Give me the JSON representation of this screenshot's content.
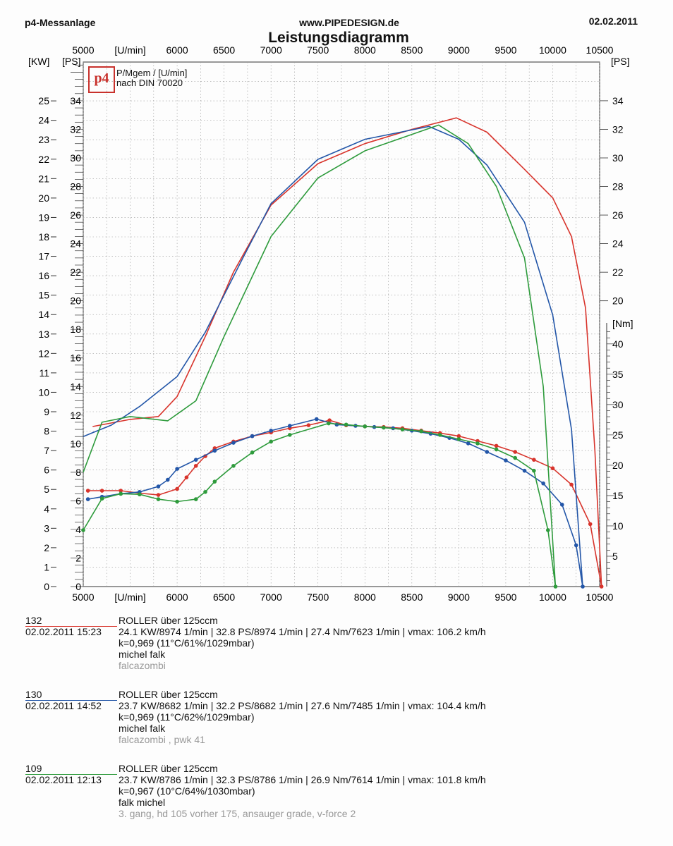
{
  "header": {
    "left": "p4-Messanlage",
    "center": "www.PIPEDESIGN.de",
    "right": "02.02.2011",
    "title": "Leistungsdiagramm"
  },
  "legend": {
    "logo_text": "p4",
    "line1": "P/Mgem / [U/min]",
    "line2": "nach DIN 70020"
  },
  "chart_data": {
    "type": "line",
    "title": "Leistungsdiagramm",
    "xlabel": "[U/min]",
    "ylabel_left_kw": "[KW]",
    "ylabel_left_ps": "[PS]",
    "ylabel_right_ps": "[PS]",
    "ylabel_right_nm": "[Nm]",
    "xlim": [
      5000,
      10500
    ],
    "ylim_kw": [
      0,
      27
    ],
    "ylim_ps": [
      0,
      36.7
    ],
    "ylim_nm": [
      0,
      43
    ],
    "x_ticks": [
      5000,
      5500,
      6000,
      6500,
      7000,
      7500,
      8000,
      8500,
      9000,
      9500,
      10000,
      10500
    ],
    "x_tick_labels": [
      "5000",
      "[U/min]",
      "6000",
      "6500",
      "7000",
      "7500",
      "8000",
      "8500",
      "9000",
      "9500",
      "10000",
      "10500"
    ],
    "kw_ticks": [
      0,
      1,
      2,
      3,
      4,
      5,
      6,
      7,
      8,
      9,
      10,
      11,
      12,
      13,
      14,
      15,
      16,
      17,
      18,
      19,
      20,
      21,
      22,
      23,
      24,
      25
    ],
    "ps_ticks": [
      0,
      2,
      4,
      6,
      8,
      10,
      12,
      14,
      16,
      18,
      20,
      22,
      24,
      26,
      28,
      30,
      32,
      34
    ],
    "ps_ticks_right": [
      20,
      22,
      24,
      26,
      28,
      30,
      32,
      34
    ],
    "nm_ticks": [
      5,
      10,
      15,
      20,
      25,
      30,
      35,
      40
    ],
    "grid": true,
    "series": [
      {
        "name": "132",
        "color": "#d8342c",
        "power_ps": [
          [
            5100,
            11.2
          ],
          [
            5500,
            11.7
          ],
          [
            5800,
            11.9
          ],
          [
            6000,
            13.3
          ],
          [
            6300,
            17.5
          ],
          [
            6600,
            22.0
          ],
          [
            7000,
            26.7
          ],
          [
            7500,
            29.6
          ],
          [
            8000,
            31.0
          ],
          [
            8500,
            32.0
          ],
          [
            8974,
            32.8
          ],
          [
            9300,
            31.8
          ],
          [
            9700,
            29.2
          ],
          [
            10000,
            27.2
          ],
          [
            10200,
            24.5
          ],
          [
            10350,
            19.5
          ],
          [
            10450,
            9.5
          ],
          [
            10520,
            0
          ]
        ],
        "torque_nm": [
          [
            5050,
            15.8
          ],
          [
            5200,
            15.8
          ],
          [
            5400,
            15.8
          ],
          [
            5600,
            15.4
          ],
          [
            5800,
            15.1
          ],
          [
            6000,
            16.1
          ],
          [
            6100,
            18.0
          ],
          [
            6200,
            19.9
          ],
          [
            6300,
            21.5
          ],
          [
            6400,
            22.8
          ],
          [
            6600,
            23.9
          ],
          [
            6800,
            24.8
          ],
          [
            7000,
            25.4
          ],
          [
            7200,
            26.1
          ],
          [
            7400,
            26.6
          ],
          [
            7623,
            27.4
          ],
          [
            7800,
            26.6
          ],
          [
            8000,
            26.4
          ],
          [
            8200,
            26.3
          ],
          [
            8400,
            26.1
          ],
          [
            8600,
            25.7
          ],
          [
            8800,
            25.3
          ],
          [
            9000,
            24.8
          ],
          [
            9200,
            24.0
          ],
          [
            9400,
            23.2
          ],
          [
            9600,
            22.2
          ],
          [
            9800,
            20.9
          ],
          [
            10000,
            19.5
          ],
          [
            10200,
            16.8
          ],
          [
            10400,
            10.3
          ],
          [
            10520,
            0
          ]
        ]
      },
      {
        "name": "130",
        "color": "#2356a8",
        "power_ps": [
          [
            5000,
            10.5
          ],
          [
            5300,
            11.3
          ],
          [
            5600,
            12.6
          ],
          [
            6000,
            14.7
          ],
          [
            6300,
            17.8
          ],
          [
            6700,
            23.0
          ],
          [
            7000,
            26.8
          ],
          [
            7500,
            29.9
          ],
          [
            8000,
            31.3
          ],
          [
            8682,
            32.2
          ],
          [
            9000,
            31.3
          ],
          [
            9300,
            29.5
          ],
          [
            9700,
            25.5
          ],
          [
            10000,
            19.0
          ],
          [
            10200,
            11.0
          ],
          [
            10320,
            0
          ]
        ],
        "torque_nm": [
          [
            5050,
            14.4
          ],
          [
            5200,
            14.8
          ],
          [
            5400,
            15.3
          ],
          [
            5600,
            15.6
          ],
          [
            5800,
            16.5
          ],
          [
            5900,
            17.6
          ],
          [
            6000,
            19.4
          ],
          [
            6200,
            20.9
          ],
          [
            6400,
            22.4
          ],
          [
            6600,
            23.7
          ],
          [
            6800,
            24.8
          ],
          [
            7000,
            25.7
          ],
          [
            7200,
            26.5
          ],
          [
            7485,
            27.6
          ],
          [
            7700,
            26.7
          ],
          [
            7900,
            26.5
          ],
          [
            8100,
            26.3
          ],
          [
            8300,
            26.1
          ],
          [
            8500,
            25.7
          ],
          [
            8700,
            25.2
          ],
          [
            8900,
            24.5
          ],
          [
            9100,
            23.6
          ],
          [
            9300,
            22.2
          ],
          [
            9500,
            20.8
          ],
          [
            9700,
            19.1
          ],
          [
            9900,
            17.0
          ],
          [
            10100,
            13.5
          ],
          [
            10250,
            6.8
          ],
          [
            10320,
            0
          ]
        ]
      },
      {
        "name": "109",
        "color": "#2e9b3c",
        "power_ps": [
          [
            5000,
            8.0
          ],
          [
            5200,
            11.5
          ],
          [
            5500,
            11.9
          ],
          [
            5900,
            11.6
          ],
          [
            6200,
            13.0
          ],
          [
            6500,
            17.5
          ],
          [
            7000,
            24.5
          ],
          [
            7500,
            28.6
          ],
          [
            8000,
            30.5
          ],
          [
            8786,
            32.3
          ],
          [
            9100,
            31.0
          ],
          [
            9400,
            28.0
          ],
          [
            9700,
            23.0
          ],
          [
            9900,
            14.0
          ],
          [
            10030,
            0
          ]
        ],
        "torque_nm": [
          [
            5000,
            9.3
          ],
          [
            5200,
            14.5
          ],
          [
            5400,
            15.3
          ],
          [
            5600,
            15.2
          ],
          [
            5800,
            14.4
          ],
          [
            6000,
            14.0
          ],
          [
            6200,
            14.4
          ],
          [
            6300,
            15.6
          ],
          [
            6400,
            17.3
          ],
          [
            6600,
            19.9
          ],
          [
            6800,
            22.1
          ],
          [
            7000,
            23.9
          ],
          [
            7200,
            25.0
          ],
          [
            7614,
            26.9
          ],
          [
            7800,
            26.7
          ],
          [
            8000,
            26.4
          ],
          [
            8200,
            26.2
          ],
          [
            8400,
            25.9
          ],
          [
            8600,
            25.6
          ],
          [
            8800,
            25.0
          ],
          [
            9000,
            24.3
          ],
          [
            9200,
            23.6
          ],
          [
            9400,
            22.6
          ],
          [
            9600,
            21.2
          ],
          [
            9800,
            19.1
          ],
          [
            9950,
            9.3
          ],
          [
            10030,
            0
          ]
        ]
      }
    ]
  },
  "runs": [
    {
      "id": "132",
      "date": "02.02.2011  15:23",
      "line1": "ROLLER über 125ccm",
      "line2": "24.1 KW/8974 1/min  |  32.8 PS/8974 1/min  |  27.4 Nm/7623 1/min | vmax: 106.2 km/h",
      "line3": "k=0,969 (11°C/61%/1029mbar)",
      "line4": "michel falk",
      "note": "falcazombi",
      "color": "#d8342c"
    },
    {
      "id": "130",
      "date": "02.02.2011  14:52",
      "line1": "ROLLER über 125ccm",
      "line2": "23.7 KW/8682 1/min  |  32.2 PS/8682 1/min  |  27.6 Nm/7485 1/min | vmax: 104.4 km/h",
      "line3": "k=0,969 (11°C/62%/1029mbar)",
      "line4": "michel falk",
      "note": "falcazombi , pwk 41",
      "color": "#2356a8"
    },
    {
      "id": "109",
      "date": "02.02.2011  12:13",
      "line1": "ROLLER über 125ccm",
      "line2": "23.7 KW/8786 1/min  |  32.3 PS/8786 1/min  |  26.9 Nm/7614 1/min | vmax: 101.8 km/h",
      "line3": "k=0,967 (10°C/64%/1030mbar)",
      "line4": "falk michel",
      "note": "3. gang, hd 105 vorher 175, ansauger grade, v-force 2",
      "color": "#2e9b3c"
    }
  ]
}
